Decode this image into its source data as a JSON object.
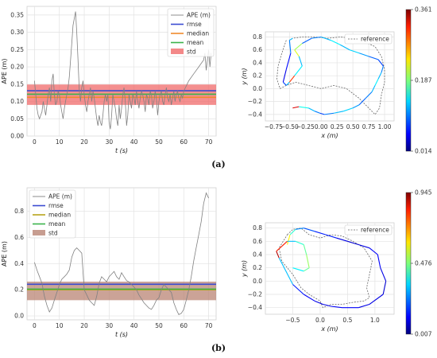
{
  "captions": [
    "(a)",
    "(b)"
  ],
  "chart_data": [
    {
      "type": "line",
      "panel": "a",
      "xlabel": "t (s)",
      "ylabel": "APE (m)",
      "xlim": [
        -3,
        73
      ],
      "ylim": [
        0,
        0.375
      ],
      "xticks": [
        0,
        10,
        20,
        30,
        40,
        50,
        60,
        70
      ],
      "yticks": [
        0.0,
        0.05,
        0.1,
        0.15,
        0.2,
        0.25,
        0.3,
        0.35
      ],
      "ytick_labels": [
        "0.00",
        "0.05",
        "0.10",
        "0.15",
        "0.20",
        "0.25",
        "0.30",
        "0.35"
      ],
      "grid": true,
      "legend_position": "top-right",
      "legend": [
        "APE (m)",
        "rmse",
        "median",
        "mean",
        "std"
      ],
      "series": [
        {
          "name": "APE (m)",
          "color": "#808080",
          "x": [
            0,
            0.5,
            1,
            1.5,
            2,
            2.5,
            3,
            3.5,
            4,
            4.5,
            5,
            5.5,
            6,
            6.5,
            7,
            7.5,
            8,
            8.5,
            9,
            9.5,
            10,
            10.5,
            11,
            11.5,
            12,
            12.5,
            13,
            13.5,
            14,
            14.5,
            15,
            15.5,
            16,
            16.5,
            17,
            17.5,
            18,
            18.5,
            19,
            19.5,
            20,
            20.5,
            21,
            21.5,
            22,
            22.5,
            23,
            23.5,
            24,
            24.5,
            25,
            25.5,
            26,
            26.5,
            27,
            27.5,
            28,
            28.5,
            29,
            29.5,
            30,
            30.5,
            31,
            31.5,
            32,
            32.5,
            33,
            33.5,
            34,
            34.5,
            35,
            35.5,
            36,
            36.5,
            37,
            37.5,
            38,
            38.5,
            39,
            39.5,
            40,
            40.5,
            41,
            41.5,
            42,
            42.5,
            43,
            43.5,
            44,
            44.5,
            45,
            45.5,
            46,
            46.5,
            47,
            47.5,
            48,
            48.5,
            49,
            49.5,
            50,
            50.5,
            51,
            51.5,
            52,
            52.5,
            53,
            53.5,
            54,
            54.5,
            55,
            55.5,
            56,
            56.5,
            57,
            57.5,
            58,
            58.5,
            59,
            59.5,
            60,
            62,
            64,
            66,
            68,
            68.5,
            69,
            69.5,
            70,
            70.5,
            71
          ],
          "y": [
            0.16,
            0.12,
            0.08,
            0.06,
            0.05,
            0.06,
            0.07,
            0.1,
            0.08,
            0.06,
            0.09,
            0.12,
            0.14,
            0.1,
            0.16,
            0.18,
            0.12,
            0.09,
            0.1,
            0.13,
            0.12,
            0.09,
            0.07,
            0.05,
            0.08,
            0.1,
            0.12,
            0.14,
            0.17,
            0.22,
            0.27,
            0.32,
            0.34,
            0.36,
            0.3,
            0.22,
            0.13,
            0.1,
            0.14,
            0.16,
            0.12,
            0.09,
            0.07,
            0.1,
            0.12,
            0.14,
            0.1,
            0.13,
            0.11,
            0.08,
            0.05,
            0.03,
            0.06,
            0.04,
            0.03,
            0.06,
            0.1,
            0.12,
            0.1,
            0.12,
            0.04,
            0.02,
            0.06,
            0.12,
            0.1,
            0.08,
            0.05,
            0.03,
            0.09,
            0.05,
            0.08,
            0.12,
            0.14,
            0.1,
            0.03,
            0.06,
            0.12,
            0.1,
            0.08,
            0.12,
            0.11,
            0.09,
            0.13,
            0.1,
            0.08,
            0.11,
            0.13,
            0.12,
            0.1,
            0.07,
            0.12,
            0.11,
            0.09,
            0.13,
            0.12,
            0.08,
            0.1,
            0.13,
            0.11,
            0.06,
            0.1,
            0.12,
            0.13,
            0.1,
            0.09,
            0.12,
            0.14,
            0.11,
            0.1,
            0.12,
            0.09,
            0.11,
            0.13,
            0.1,
            0.12,
            0.13,
            0.11,
            0.1,
            0.12,
            0.11,
            0.13,
            0.16,
            0.18,
            0.2,
            0.22,
            0.24,
            0.19,
            0.22,
            0.25,
            0.2,
            0.24
          ]
        },
        {
          "name": "rmse",
          "color": "#3a4bd1",
          "value": 0.131
        },
        {
          "name": "median",
          "color": "#f08a2c",
          "value": 0.112
        },
        {
          "name": "mean",
          "color": "#3bb34a",
          "value": 0.121
        },
        {
          "name": "std",
          "color": "#f06a6a",
          "value_low": 0.09,
          "value_high": 0.149
        }
      ]
    },
    {
      "type": "line",
      "panel": "a-trajectory",
      "xlabel": "x (m)",
      "ylabel": "y (m)",
      "xlim": [
        -0.88,
        1.15
      ],
      "ylim": [
        -0.5,
        0.88
      ],
      "xticks": [
        -0.75,
        -0.5,
        -0.25,
        0.0,
        0.25,
        0.5,
        0.75,
        1.0
      ],
      "xtick_labels": [
        "−0.75",
        "−0.50",
        "−0.25",
        "0.00",
        "0.25",
        "0.50",
        "0.75",
        "1.00"
      ],
      "yticks": [
        -0.4,
        -0.2,
        0.0,
        0.2,
        0.4,
        0.6,
        0.8
      ],
      "ytick_labels": [
        "−0.4",
        "−0.2",
        "0.0",
        "0.2",
        "0.4",
        "0.6",
        "0.8"
      ],
      "grid": true,
      "legend_position": "top-right",
      "legend": [
        "reference"
      ],
      "colorbar": {
        "min": 0.014,
        "mid": 0.187,
        "max": 0.361,
        "labels": [
          "0.361",
          "0.187",
          "0.014"
        ]
      },
      "reference": {
        "x": [
          -0.55,
          -0.62,
          -0.68,
          -0.7,
          -0.65,
          -0.55,
          -0.4,
          -0.2,
          0.0,
          0.2,
          0.4,
          0.6,
          0.75,
          0.85,
          0.92,
          0.95,
          1.0,
          1.0,
          0.95,
          0.85,
          0.7,
          0.5,
          0.3,
          0.1,
          -0.1,
          -0.3,
          -0.45,
          -0.5
        ],
        "y": [
          0.75,
          0.55,
          0.35,
          0.15,
          0.0,
          0.05,
          0.1,
          0.05,
          0.0,
          0.05,
          0.0,
          -0.15,
          -0.3,
          -0.4,
          -0.3,
          -0.1,
          0.1,
          0.3,
          0.5,
          0.65,
          0.72,
          0.78,
          0.8,
          0.78,
          0.8,
          0.8,
          0.78,
          0.75
        ]
      },
      "estimate": {
        "x": [
          -0.45,
          -0.35,
          -0.2,
          -0.1,
          -0.02,
          0.05,
          0.2,
          0.35,
          0.5,
          0.6,
          0.7,
          0.8,
          0.85,
          0.9,
          0.95,
          0.98,
          0.9,
          0.75,
          0.6,
          0.45,
          0.3,
          0.15,
          0.0,
          -0.15,
          -0.3,
          -0.42,
          -0.35,
          -0.3,
          -0.42,
          -0.5,
          -0.55,
          -0.6,
          -0.55,
          -0.48,
          -0.5,
          -0.45
        ],
        "y": [
          -0.3,
          -0.28,
          -0.3,
          -0.35,
          -0.38,
          -0.4,
          -0.38,
          -0.35,
          -0.3,
          -0.25,
          -0.15,
          -0.05,
          0.05,
          0.15,
          0.25,
          0.35,
          0.45,
          0.5,
          0.55,
          0.6,
          0.68,
          0.75,
          0.8,
          0.78,
          0.7,
          0.6,
          0.5,
          0.35,
          0.2,
          0.1,
          0.05,
          0.1,
          0.3,
          0.55,
          0.75,
          0.78
        ],
        "ape": [
          0.33,
          0.15,
          0.12,
          0.1,
          0.08,
          0.1,
          0.12,
          0.13,
          0.11,
          0.09,
          0.1,
          0.12,
          0.14,
          0.12,
          0.1,
          0.08,
          0.09,
          0.11,
          0.13,
          0.12,
          0.14,
          0.12,
          0.1,
          0.09,
          0.2,
          0.22,
          0.12,
          0.14,
          0.3,
          0.12,
          0.08,
          0.05,
          0.06,
          0.1,
          0.12,
          0.1
        ]
      }
    },
    {
      "type": "line",
      "panel": "b",
      "xlabel": "t (s)",
      "ylabel": "APE (m)",
      "xlim": [
        -3,
        73
      ],
      "ylim": [
        -0.03,
        0.98
      ],
      "xticks": [
        0,
        10,
        20,
        30,
        40,
        50,
        60,
        70
      ],
      "yticks": [
        0.0,
        0.2,
        0.4,
        0.6,
        0.8
      ],
      "ytick_labels": [
        "0.0",
        "0.2",
        "0.4",
        "0.6",
        "0.8"
      ],
      "grid": true,
      "legend_position": "top-left",
      "legend": [
        "APE (m)",
        "rmse",
        "median",
        "mean",
        "std"
      ],
      "series": [
        {
          "name": "APE (m)",
          "color": "#808080",
          "x": [
            0,
            1,
            2,
            3,
            4,
            5,
            6,
            7,
            8,
            9,
            10,
            11,
            12,
            13,
            14,
            15,
            16,
            17,
            18,
            19,
            20,
            21,
            22,
            23,
            24,
            25,
            26,
            27,
            28,
            29,
            30,
            31,
            32,
            33,
            34,
            35,
            36,
            37,
            38,
            39,
            40,
            41,
            42,
            43,
            44,
            45,
            46,
            47,
            48,
            49,
            50,
            51,
            52,
            53,
            54,
            55,
            56,
            57,
            58,
            59,
            60,
            61,
            62,
            63,
            64,
            65,
            66,
            67,
            68,
            69,
            70
          ],
          "y": [
            0.41,
            0.35,
            0.3,
            0.25,
            0.15,
            0.08,
            0.03,
            0.06,
            0.12,
            0.18,
            0.24,
            0.28,
            0.3,
            0.32,
            0.35,
            0.45,
            0.5,
            0.52,
            0.5,
            0.48,
            0.2,
            0.16,
            0.12,
            0.1,
            0.08,
            0.15,
            0.25,
            0.3,
            0.28,
            0.26,
            0.3,
            0.32,
            0.34,
            0.3,
            0.28,
            0.33,
            0.3,
            0.27,
            0.26,
            0.24,
            0.22,
            0.2,
            0.16,
            0.13,
            0.1,
            0.08,
            0.06,
            0.05,
            0.08,
            0.12,
            0.14,
            0.2,
            0.24,
            0.22,
            0.2,
            0.18,
            0.1,
            0.05,
            0.01,
            0.02,
            0.05,
            0.12,
            0.2,
            0.3,
            0.42,
            0.52,
            0.62,
            0.72,
            0.86,
            0.94,
            0.9
          ]
        },
        {
          "name": "rmse",
          "color": "#3a4bd1",
          "value": 0.242
        },
        {
          "name": "median",
          "color": "#b8a31a",
          "value": 0.2
        },
        {
          "name": "mean",
          "color": "#3bb34a",
          "value": 0.205
        },
        {
          "name": "std",
          "color": "#b98474",
          "value_low": 0.12,
          "value_high": 0.262
        }
      ]
    },
    {
      "type": "line",
      "panel": "b-trajectory",
      "xlabel": "x (m)",
      "ylabel": "y (m)",
      "xlim": [
        -1.0,
        1.35
      ],
      "ylim": [
        -0.5,
        0.88
      ],
      "xticks": [
        -0.5,
        0.0,
        0.5,
        1.0
      ],
      "xtick_labels": [
        "−0.5",
        "0.0",
        "0.5",
        "1.0"
      ],
      "yticks": [
        -0.4,
        -0.2,
        0.0,
        0.2,
        0.4,
        0.6,
        0.8
      ],
      "ytick_labels": [
        "−0.4",
        "−0.2",
        "0.0",
        "0.2",
        "0.4",
        "0.6",
        "0.8"
      ],
      "grid": true,
      "legend_position": "top-right",
      "legend": [
        "reference"
      ],
      "colorbar": {
        "min": 0.007,
        "mid": 0.476,
        "max": 0.945,
        "labels": [
          "0.945",
          "0.476",
          "0.007"
        ]
      },
      "reference": {
        "x": [
          -0.6,
          -0.5,
          -0.35,
          -0.2,
          0.0,
          0.2,
          0.4,
          0.6,
          0.8,
          0.95,
          0.9,
          0.85,
          0.9,
          0.8,
          0.6,
          0.4,
          0.2,
          0.05,
          0.0,
          -0.2,
          -0.35,
          -0.5,
          -0.7,
          -0.75,
          -0.6
        ],
        "y": [
          0.7,
          0.78,
          0.8,
          0.7,
          0.65,
          0.7,
          0.68,
          0.6,
          0.5,
          0.3,
          0.1,
          -0.1,
          -0.25,
          -0.3,
          -0.32,
          -0.35,
          -0.35,
          -0.4,
          -0.3,
          -0.2,
          -0.1,
          0.1,
          0.3,
          0.5,
          0.7
        ]
      },
      "estimate": {
        "x": [
          -0.6,
          -0.55,
          -0.45,
          -0.3,
          -0.1,
          0.1,
          0.3,
          0.5,
          0.7,
          0.9,
          1.05,
          1.1,
          1.2,
          1.15,
          0.9,
          0.7,
          0.4,
          0.2,
          0.05,
          -0.1,
          -0.3,
          -0.5,
          -0.75,
          -0.8,
          -0.6,
          -0.45,
          -0.3,
          -0.25,
          -0.2,
          -0.3,
          -0.5
        ],
        "y": [
          0.55,
          0.7,
          0.78,
          0.8,
          0.75,
          0.7,
          0.65,
          0.6,
          0.55,
          0.5,
          0.4,
          0.2,
          0.0,
          -0.2,
          -0.35,
          -0.4,
          -0.4,
          -0.38,
          -0.35,
          -0.3,
          -0.2,
          -0.05,
          0.35,
          0.45,
          0.6,
          0.6,
          0.55,
          0.4,
          0.2,
          0.15,
          0.2
        ],
        "ape": [
          0.6,
          0.4,
          0.25,
          0.2,
          0.15,
          0.15,
          0.1,
          0.08,
          0.1,
          0.12,
          0.12,
          0.1,
          0.08,
          0.1,
          0.1,
          0.12,
          0.12,
          0.1,
          0.1,
          0.12,
          0.15,
          0.3,
          0.9,
          0.8,
          0.3,
          0.4,
          0.45,
          0.5,
          0.45,
          0.35,
          0.4
        ]
      }
    }
  ]
}
